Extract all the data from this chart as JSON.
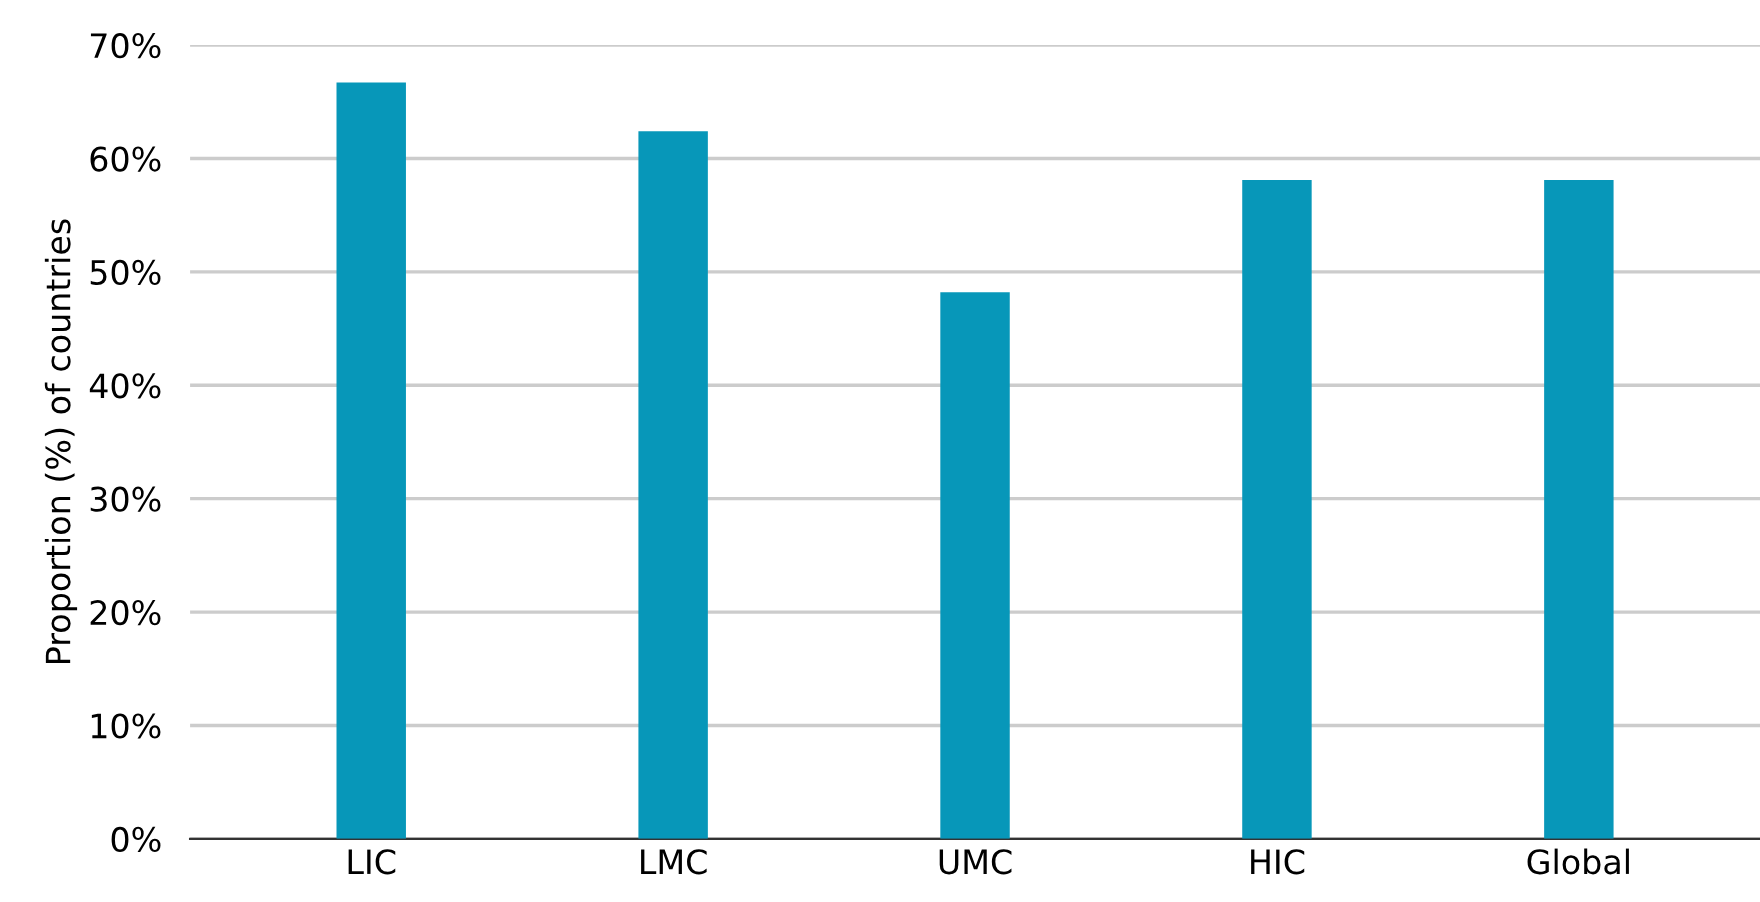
{
  "chart_data": {
    "type": "bar",
    "ylabel": "Proportion (%) of countries",
    "categories": [
      "LIC",
      "LMC",
      "UMC",
      "HIC",
      "Global"
    ],
    "values": [
      66.7,
      62.4,
      48.2,
      58.1,
      58.1
    ],
    "color": "#0797b9",
    "ylim": [
      0,
      70
    ],
    "yticks": [
      {
        "value": 0,
        "label": "0%"
      },
      {
        "value": 10,
        "label": "10%"
      },
      {
        "value": 20,
        "label": "20%"
      },
      {
        "value": 30,
        "label": "30%"
      },
      {
        "value": 40,
        "label": "40%"
      },
      {
        "value": 50,
        "label": "50%"
      },
      {
        "value": 60,
        "label": "60%"
      },
      {
        "value": 70,
        "label": "70%"
      }
    ],
    "grid": "y",
    "legend": false
  }
}
